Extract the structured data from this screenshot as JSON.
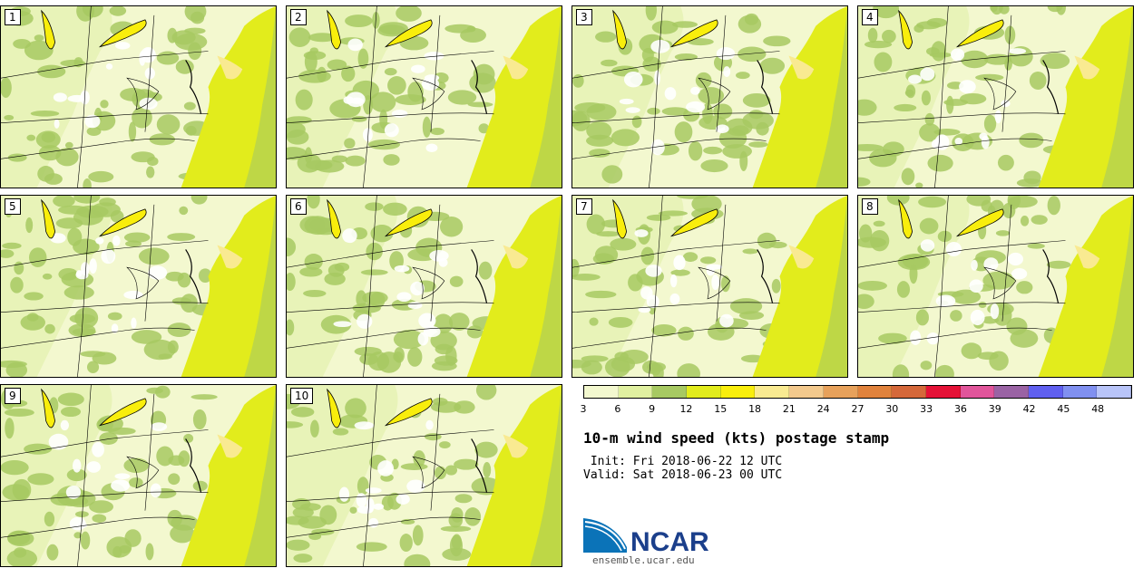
{
  "panels": [
    {
      "label": "1"
    },
    {
      "label": "2"
    },
    {
      "label": "3"
    },
    {
      "label": "4"
    },
    {
      "label": "5"
    },
    {
      "label": "6"
    },
    {
      "label": "7"
    },
    {
      "label": "8"
    },
    {
      "label": "9"
    },
    {
      "label": "10"
    }
  ],
  "colorbar": {
    "colors": [
      "#f3f8cf",
      "#e0f0a0",
      "#a7c962",
      "#e2ec1c",
      "#f9ee0c",
      "#f9ea91",
      "#f3c98d",
      "#e7a15b",
      "#e0823c",
      "#d5683a",
      "#e51237",
      "#e1559b",
      "#9a63a4",
      "#6060f0",
      "#8090f0",
      "#b8c4f8"
    ],
    "ticks": [
      "3",
      "6",
      "9",
      "12",
      "15",
      "18",
      "21",
      "24",
      "27",
      "30",
      "33",
      "36",
      "39",
      "42",
      "45",
      "48"
    ]
  },
  "title": "10-m wind speed (kts) postage stamp",
  "init": " Init: Fri 2018-06-22 12 UTC",
  "valid": "Valid: Sat 2018-06-23 00 UTC",
  "logo": {
    "text": "NCAR",
    "url": "ensemble.ucar.edu"
  },
  "colors": {
    "ocean": "#e2ec1c",
    "land": "#f3f8cf",
    "patch": "#a7c962",
    "lake": "#f9ee0c"
  }
}
